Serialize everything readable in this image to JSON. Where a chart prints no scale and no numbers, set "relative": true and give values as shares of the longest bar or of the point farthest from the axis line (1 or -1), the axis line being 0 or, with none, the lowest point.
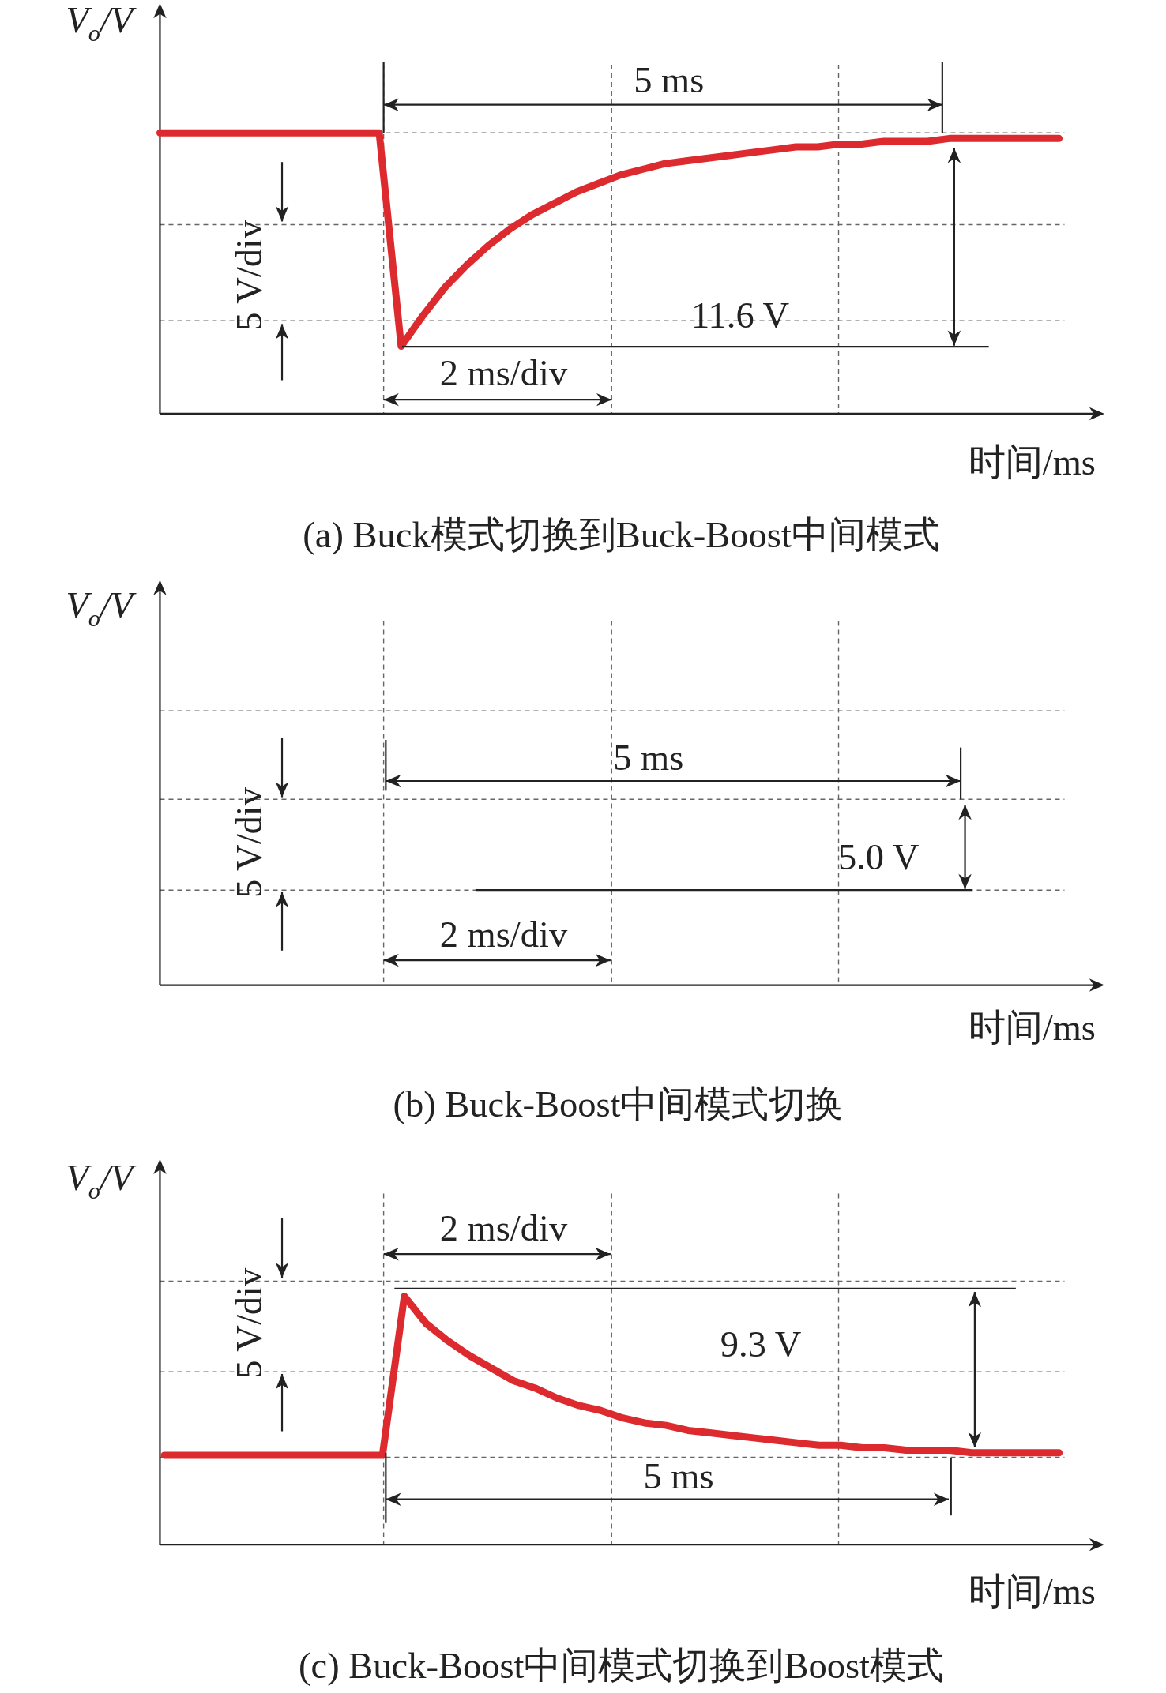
{
  "chart_data": [
    {
      "type": "line",
      "title": "(a) Buck模式切换到Buck-Boost中间模式",
      "xlabel": "时间/ms",
      "ylabel": "V$_{o}$/V",
      "relative": true,
      "grid": true,
      "categories": [
        null,
        null,
        null,
        null,
        null,
        null,
        null,
        null,
        null,
        null,
        null,
        null,
        null,
        null,
        null,
        null,
        null,
        null,
        null,
        null,
        null,
        null,
        null,
        null,
        null,
        null,
        null,
        null,
        null,
        null,
        null,
        null,
        null,
        null,
        null,
        null,
        null,
        null,
        null,
        null,
        null,
        null
      ],
      "series": [
        {
          "color": "#dd2a2e",
          "values": [
            1,
            1,
            1,
            1,
            1,
            1,
            1,
            1,
            1,
            1,
            1,
            0.24,
            0.35,
            0.45,
            0.53,
            0.6,
            0.66,
            0.71,
            0.75,
            0.79,
            0.82,
            0.85,
            0.87,
            0.89,
            0.9,
            0.91,
            0.92,
            0.93,
            0.94,
            0.95,
            0.95,
            0.96,
            0.96,
            0.97,
            0.97,
            0.97,
            0.98,
            0.98,
            0.98,
            0.98,
            0.98,
            0.98
          ]
        }
      ],
      "annotations": [
        "5 ms",
        "11.6 V",
        "5 V/div",
        "2 ms/div"
      ]
    },
    {
      "type": "other",
      "title": "(b) Buck-Boost中间模式切换",
      "xlabel": "时间/ms",
      "ylabel": "V$_{o}$/V",
      "annotations": [
        "5 ms",
        "5.0 V",
        "5 V/div",
        "2 ms/div"
      ]
    },
    {
      "type": "line",
      "title": "(c) Buck-Boost中间模式切换到Boost模式",
      "xlabel": "时间/ms",
      "ylabel": "V$_{o}$/V",
      "relative": true,
      "grid": true,
      "categories": [
        null,
        null,
        null,
        null,
        null,
        null,
        null,
        null,
        null,
        null,
        null,
        null,
        null,
        null,
        null,
        null,
        null,
        null,
        null,
        null,
        null,
        null,
        null,
        null,
        null,
        null,
        null,
        null,
        null,
        null,
        null,
        null,
        null,
        null,
        null,
        null,
        null,
        null,
        null,
        null,
        null,
        null
      ],
      "series": [
        {
          "color": "#dd2a2e",
          "values": [
            0.36,
            0.36,
            0.36,
            0.36,
            0.36,
            0.36,
            0.36,
            0.36,
            0.36,
            0.36,
            0.36,
            1,
            0.89,
            0.82,
            0.76,
            0.71,
            0.66,
            0.63,
            0.59,
            0.56,
            0.54,
            0.51,
            0.49,
            0.48,
            0.46,
            0.45,
            0.44,
            0.43,
            0.42,
            0.41,
            0.4,
            0.4,
            0.39,
            0.39,
            0.38,
            0.38,
            0.38,
            0.37,
            0.37,
            0.37,
            0.37,
            0.37
          ]
        }
      ],
      "annotations": [
        "2 ms/div",
        "9.3 V",
        "5 ms",
        "5 V/div"
      ]
    }
  ]
}
